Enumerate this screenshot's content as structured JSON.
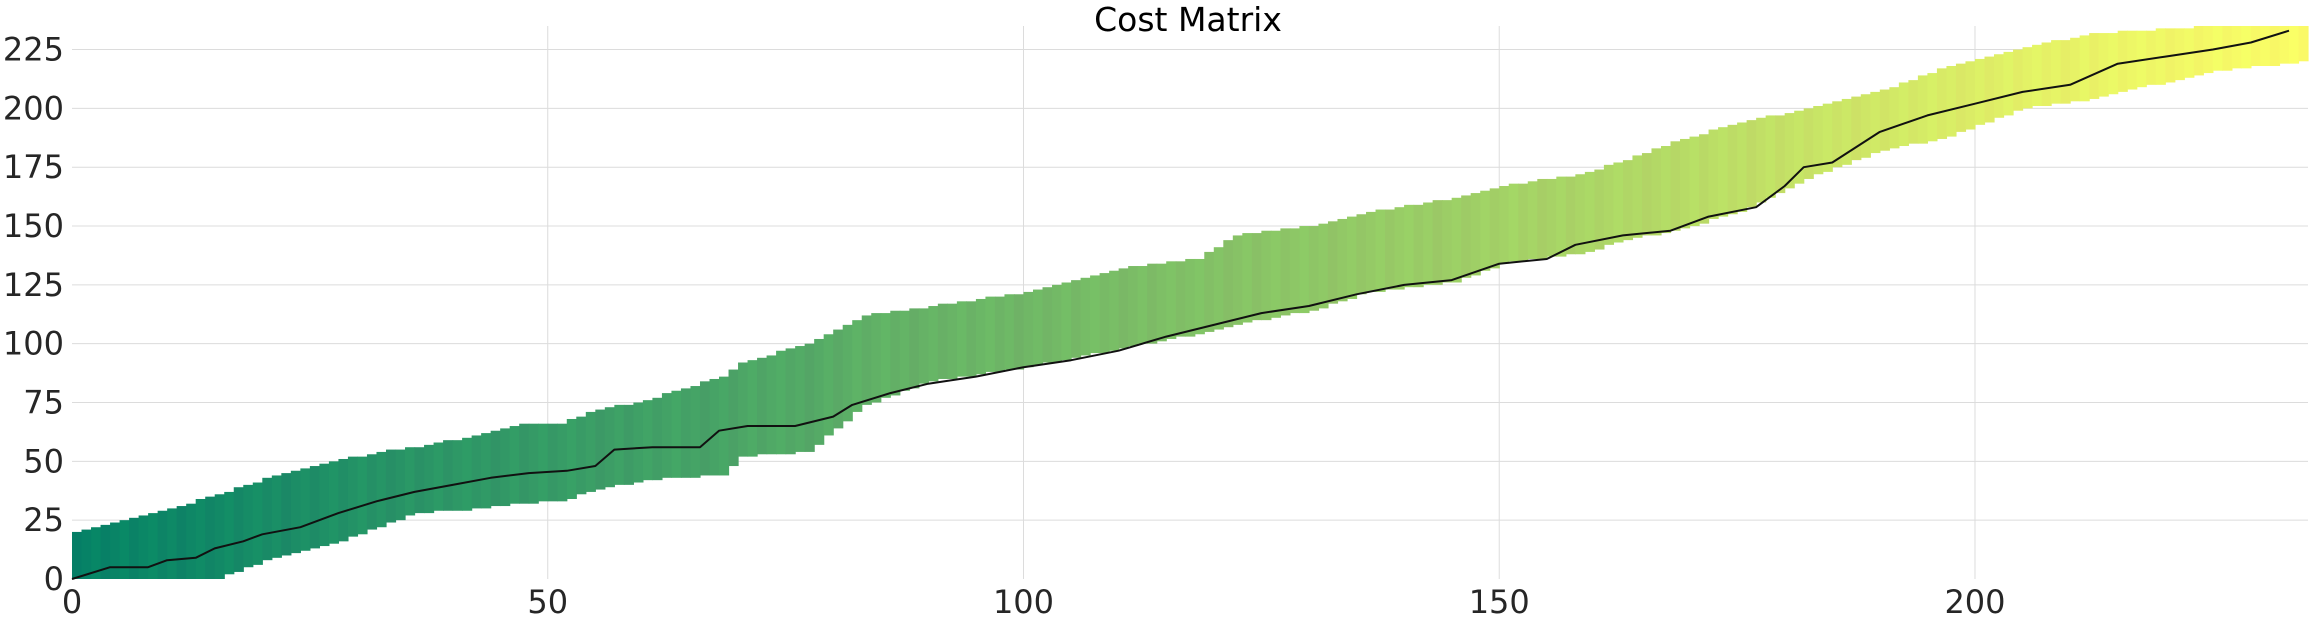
{
  "chart_data": {
    "type": "heatmap",
    "title": "Cost Matrix",
    "xlabel": "",
    "ylabel": "",
    "xlim": [
      0,
      235
    ],
    "ylim": [
      0,
      235
    ],
    "xticks": [
      0,
      50,
      100,
      150,
      200
    ],
    "yticks": [
      0,
      25,
      50,
      75,
      100,
      125,
      150,
      175,
      200,
      225
    ],
    "grid": true,
    "colormap": "summer",
    "colormap_stops": [
      "#008066",
      "#FFFF66"
    ],
    "band": [
      {
        "x": 0,
        "lo": 0,
        "hi": 20
      },
      {
        "x": 5,
        "lo": 0,
        "hi": 25
      },
      {
        "x": 10,
        "lo": 0,
        "hi": 30
      },
      {
        "x": 15,
        "lo": 0,
        "hi": 36
      },
      {
        "x": 18,
        "lo": 5,
        "hi": 40
      },
      {
        "x": 22,
        "lo": 10,
        "hi": 45
      },
      {
        "x": 27,
        "lo": 15,
        "hi": 50
      },
      {
        "x": 32,
        "lo": 22,
        "hi": 54
      },
      {
        "x": 36,
        "lo": 28,
        "hi": 56
      },
      {
        "x": 43,
        "lo": 30,
        "hi": 62
      },
      {
        "x": 47,
        "lo": 32,
        "hi": 66
      },
      {
        "x": 51,
        "lo": 33,
        "hi": 66
      },
      {
        "x": 55,
        "lo": 38,
        "hi": 72
      },
      {
        "x": 60,
        "lo": 42,
        "hi": 76
      },
      {
        "x": 68,
        "lo": 44,
        "hi": 86
      },
      {
        "x": 70,
        "lo": 52,
        "hi": 92
      },
      {
        "x": 77,
        "lo": 54,
        "hi": 100
      },
      {
        "x": 83,
        "lo": 74,
        "hi": 112
      },
      {
        "x": 90,
        "lo": 84,
        "hi": 116
      },
      {
        "x": 100,
        "lo": 90,
        "hi": 122
      },
      {
        "x": 110,
        "lo": 98,
        "hi": 132
      },
      {
        "x": 118,
        "lo": 104,
        "hi": 136
      },
      {
        "x": 122,
        "lo": 108,
        "hi": 146
      },
      {
        "x": 130,
        "lo": 114,
        "hi": 150
      },
      {
        "x": 136,
        "lo": 122,
        "hi": 156
      },
      {
        "x": 145,
        "lo": 126,
        "hi": 162
      },
      {
        "x": 150,
        "lo": 134,
        "hi": 167
      },
      {
        "x": 158,
        "lo": 138,
        "hi": 172
      },
      {
        "x": 163,
        "lo": 144,
        "hi": 178
      },
      {
        "x": 168,
        "lo": 148,
        "hi": 186
      },
      {
        "x": 175,
        "lo": 156,
        "hi": 194
      },
      {
        "x": 182,
        "lo": 170,
        "hi": 200
      },
      {
        "x": 190,
        "lo": 182,
        "hi": 208
      },
      {
        "x": 197,
        "lo": 188,
        "hi": 218
      },
      {
        "x": 205,
        "lo": 200,
        "hi": 226
      },
      {
        "x": 212,
        "lo": 204,
        "hi": 232
      },
      {
        "x": 225,
        "lo": 216,
        "hi": 235
      },
      {
        "x": 235,
        "lo": 220,
        "hi": 235
      }
    ],
    "path": [
      {
        "x": 0,
        "y": 0
      },
      {
        "x": 4,
        "y": 5
      },
      {
        "x": 8,
        "y": 5
      },
      {
        "x": 10,
        "y": 8
      },
      {
        "x": 13,
        "y": 9
      },
      {
        "x": 15,
        "y": 13
      },
      {
        "x": 18,
        "y": 16
      },
      {
        "x": 20,
        "y": 19
      },
      {
        "x": 24,
        "y": 22
      },
      {
        "x": 28,
        "y": 28
      },
      {
        "x": 32,
        "y": 33
      },
      {
        "x": 36,
        "y": 37
      },
      {
        "x": 40,
        "y": 40
      },
      {
        "x": 44,
        "y": 43
      },
      {
        "x": 48,
        "y": 45
      },
      {
        "x": 52,
        "y": 46
      },
      {
        "x": 55,
        "y": 48
      },
      {
        "x": 57,
        "y": 55
      },
      {
        "x": 61,
        "y": 56
      },
      {
        "x": 66,
        "y": 56
      },
      {
        "x": 68,
        "y": 63
      },
      {
        "x": 71,
        "y": 65
      },
      {
        "x": 76,
        "y": 65
      },
      {
        "x": 80,
        "y": 69
      },
      {
        "x": 82,
        "y": 74
      },
      {
        "x": 86,
        "y": 79
      },
      {
        "x": 90,
        "y": 83
      },
      {
        "x": 95,
        "y": 86
      },
      {
        "x": 100,
        "y": 90
      },
      {
        "x": 105,
        "y": 93
      },
      {
        "x": 110,
        "y": 97
      },
      {
        "x": 115,
        "y": 103
      },
      {
        "x": 120,
        "y": 108
      },
      {
        "x": 125,
        "y": 113
      },
      {
        "x": 130,
        "y": 116
      },
      {
        "x": 135,
        "y": 121
      },
      {
        "x": 140,
        "y": 125
      },
      {
        "x": 145,
        "y": 127
      },
      {
        "x": 150,
        "y": 134
      },
      {
        "x": 155,
        "y": 136
      },
      {
        "x": 158,
        "y": 142
      },
      {
        "x": 163,
        "y": 146
      },
      {
        "x": 168,
        "y": 148
      },
      {
        "x": 172,
        "y": 154
      },
      {
        "x": 177,
        "y": 158
      },
      {
        "x": 180,
        "y": 167
      },
      {
        "x": 182,
        "y": 175
      },
      {
        "x": 185,
        "y": 177
      },
      {
        "x": 190,
        "y": 190
      },
      {
        "x": 195,
        "y": 197
      },
      {
        "x": 200,
        "y": 202
      },
      {
        "x": 205,
        "y": 207
      },
      {
        "x": 210,
        "y": 210
      },
      {
        "x": 215,
        "y": 219
      },
      {
        "x": 220,
        "y": 222
      },
      {
        "x": 225,
        "y": 225
      },
      {
        "x": 229,
        "y": 228
      },
      {
        "x": 233,
        "y": 233
      }
    ]
  }
}
